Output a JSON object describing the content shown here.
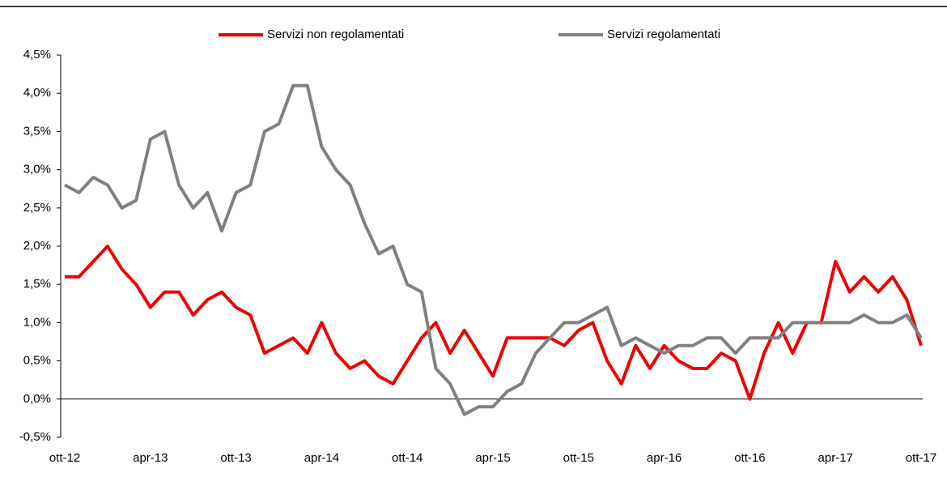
{
  "chart_data": {
    "type": "line",
    "categories": [
      "ott-12",
      null,
      null,
      null,
      null,
      null,
      "apr-13",
      null,
      null,
      null,
      null,
      null,
      "ott-13",
      null,
      null,
      null,
      null,
      null,
      "apr-14",
      null,
      null,
      null,
      null,
      null,
      "ott-14",
      null,
      null,
      null,
      null,
      null,
      "apr-15",
      null,
      null,
      null,
      null,
      null,
      "ott-15",
      null,
      null,
      null,
      null,
      null,
      "apr-16",
      null,
      null,
      null,
      null,
      null,
      "ott-16",
      null,
      null,
      null,
      null,
      null,
      "apr-17",
      null,
      null,
      null,
      null,
      null,
      "ott-17"
    ],
    "series": [
      {
        "name": "Servizi non regolamentati",
        "color": "#ee0000",
        "values": [
          1.6,
          1.6,
          1.8,
          2.0,
          1.7,
          1.5,
          1.2,
          1.4,
          1.4,
          1.1,
          1.3,
          1.4,
          1.2,
          1.1,
          0.6,
          0.7,
          0.8,
          0.6,
          1.0,
          0.6,
          0.4,
          0.5,
          0.3,
          0.2,
          0.5,
          0.8,
          1.0,
          0.6,
          0.9,
          0.6,
          0.3,
          0.8,
          0.8,
          0.8,
          0.8,
          0.7,
          0.9,
          1.0,
          0.5,
          0.2,
          0.7,
          0.4,
          0.7,
          0.5,
          0.4,
          0.4,
          0.6,
          0.5,
          0.0,
          0.6,
          1.0,
          0.6,
          1.0,
          1.0,
          1.8,
          1.4,
          1.6,
          1.4,
          1.6,
          1.3,
          0.7
        ]
      },
      {
        "name": "Servizi regolamentati",
        "color": "#808080",
        "values": [
          2.8,
          2.7,
          2.9,
          2.8,
          2.5,
          2.6,
          3.4,
          3.5,
          2.8,
          2.5,
          2.7,
          2.2,
          2.7,
          2.8,
          3.5,
          3.6,
          4.1,
          4.1,
          3.3,
          3.0,
          2.8,
          2.3,
          1.9,
          2.0,
          1.5,
          1.4,
          0.4,
          0.2,
          -0.2,
          -0.1,
          -0.1,
          0.1,
          0.2,
          0.6,
          0.8,
          1.0,
          1.0,
          1.1,
          1.2,
          0.7,
          0.8,
          0.7,
          0.6,
          0.7,
          0.7,
          0.8,
          0.8,
          0.6,
          0.8,
          0.8,
          0.8,
          1.0,
          1.0,
          1.0,
          1.0,
          1.0,
          1.1,
          1.0,
          1.0,
          1.1,
          0.8
        ]
      }
    ],
    "ylim": [
      -0.5,
      4.5
    ],
    "yticks": [
      {
        "value": -0.5,
        "label": "-0,5%"
      },
      {
        "value": 0,
        "label": "0,0%"
      },
      {
        "value": 0.5,
        "label": "0,5%"
      },
      {
        "value": 1,
        "label": "1,0%"
      },
      {
        "value": 1.5,
        "label": "1,5%"
      },
      {
        "value": 2,
        "label": "2,0%"
      },
      {
        "value": 2.5,
        "label": "2,5%"
      },
      {
        "value": 3,
        "label": "3,0%"
      },
      {
        "value": 3.5,
        "label": "3,5%"
      },
      {
        "value": 4,
        "label": "4,0%"
      },
      {
        "value": 4.5,
        "label": "4,5%"
      }
    ],
    "legend": "top",
    "grid": false
  }
}
